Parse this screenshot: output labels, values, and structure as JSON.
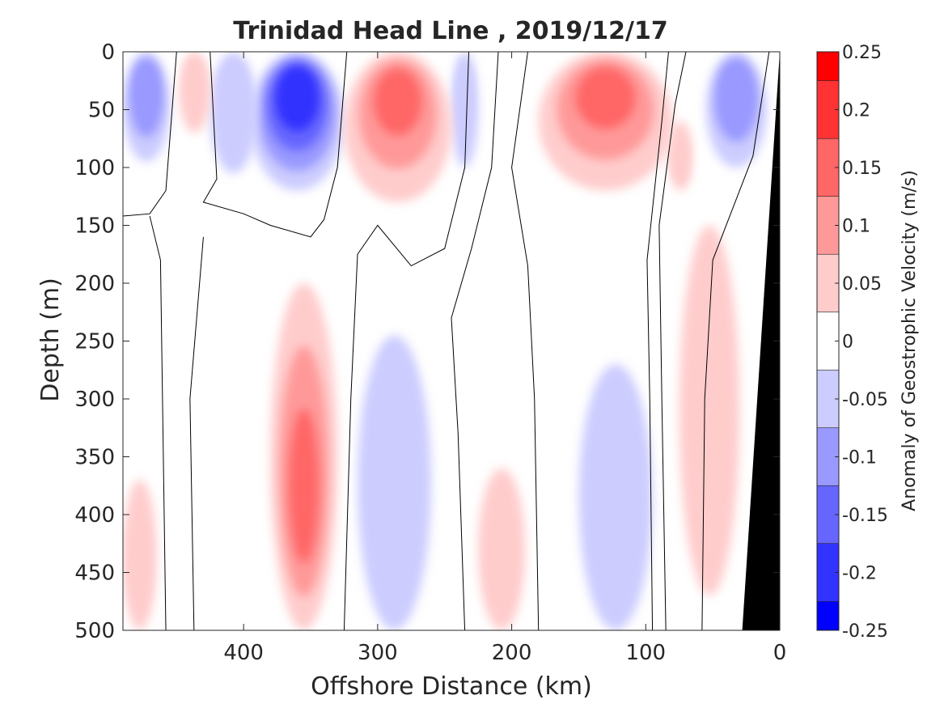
{
  "chart_data": {
    "type": "heatmap",
    "subtype": "filled-contour",
    "title": "Trinidad Head Line , 2019/12/17",
    "xlabel": "Offshore Distance (km)",
    "ylabel": "Depth (m)",
    "colorbar_label": "Anomaly of Geostrophic Velocity (m/s)",
    "x_reversed": true,
    "y_reversed": true,
    "xlim": [
      0,
      490
    ],
    "ylim": [
      0,
      500
    ],
    "x_ticks": [
      400,
      300,
      200,
      100,
      0
    ],
    "y_ticks": [
      0,
      50,
      100,
      150,
      200,
      250,
      300,
      350,
      400,
      450,
      500
    ],
    "colorbar_ticks": [
      "0.25",
      "0.2",
      "0.15",
      "0.1",
      "0.05",
      "0",
      "-0.05",
      "-0.1",
      "-0.15",
      "-0.2",
      "-0.25"
    ],
    "levels": [
      {
        "min": 0.225,
        "max": 0.25,
        "color": "#ff0000"
      },
      {
        "min": 0.175,
        "max": 0.225,
        "color": "#ff3333"
      },
      {
        "min": 0.125,
        "max": 0.175,
        "color": "#ff6666"
      },
      {
        "min": 0.075,
        "max": 0.125,
        "color": "#ff9999"
      },
      {
        "min": 0.025,
        "max": 0.075,
        "color": "#ffcccc"
      },
      {
        "min": -0.025,
        "max": 0.025,
        "color": "#ffffff"
      },
      {
        "min": -0.075,
        "max": -0.025,
        "color": "#ccccff"
      },
      {
        "min": -0.125,
        "max": -0.075,
        "color": "#9999ff"
      },
      {
        "min": -0.175,
        "max": -0.125,
        "color": "#6666ff"
      },
      {
        "min": -0.225,
        "max": -0.175,
        "color": "#3333ff"
      },
      {
        "min": -0.25,
        "max": -0.225,
        "color": "#0000ff"
      }
    ],
    "features": [
      {
        "label": "neg-360-surface",
        "value": -0.2,
        "dist_range": [
          325,
          395
        ],
        "depth_range": [
          0,
          120
        ]
      },
      {
        "label": "neg-470-surface",
        "value": -0.1,
        "dist_range": [
          455,
          490
        ],
        "depth_range": [
          0,
          95
        ]
      },
      {
        "label": "neg-410-surface",
        "value": -0.05,
        "dist_range": [
          390,
          425
        ],
        "depth_range": [
          0,
          105
        ]
      },
      {
        "label": "neg-240-surface",
        "value": -0.05,
        "dist_range": [
          225,
          245
        ],
        "depth_range": [
          0,
          100
        ]
      },
      {
        "label": "neg-30-surface",
        "value": -0.1,
        "dist_range": [
          10,
          55
        ],
        "depth_range": [
          0,
          100
        ]
      },
      {
        "label": "pos-300-surface",
        "value": 0.125,
        "dist_range": [
          245,
          325
        ],
        "depth_range": [
          0,
          130
        ]
      },
      {
        "label": "pos-120-surface",
        "value": 0.125,
        "dist_range": [
          80,
          180
        ],
        "depth_range": [
          0,
          120
        ]
      },
      {
        "label": "pos-440-surface",
        "value": 0.05,
        "dist_range": [
          425,
          448
        ],
        "depth_range": [
          0,
          70
        ]
      },
      {
        "label": "pos-75-subsurface",
        "value": 0.05,
        "dist_range": [
          65,
          83
        ],
        "depth_range": [
          60,
          120
        ]
      },
      {
        "label": "pos-355-deep",
        "value": 0.125,
        "dist_range": [
          330,
          380
        ],
        "depth_range": [
          200,
          500
        ]
      },
      {
        "label": "neg-290-deep",
        "value": -0.075,
        "dist_range": [
          260,
          315
        ],
        "depth_range": [
          245,
          500
        ]
      },
      {
        "label": "neg-120-deep",
        "value": -0.05,
        "dist_range": [
          95,
          150
        ],
        "depth_range": [
          270,
          500
        ]
      },
      {
        "label": "pos-205-deep",
        "value": 0.05,
        "dist_range": [
          190,
          225
        ],
        "depth_range": [
          360,
          500
        ]
      },
      {
        "label": "pos-470-deep",
        "value": 0.05,
        "dist_range": [
          465,
          490
        ],
        "depth_range": [
          370,
          500
        ]
      },
      {
        "label": "pos-40-slope",
        "value": 0.05,
        "dist_range": [
          30,
          75
        ],
        "depth_range": [
          150,
          470
        ]
      }
    ],
    "zero_contours_km": [
      [
        [
          450,
          0
        ],
        [
          458,
          120
        ],
        [
          470,
          140
        ],
        [
          490,
          142
        ]
      ],
      [
        [
          425,
          0
        ],
        [
          420,
          110
        ],
        [
          430,
          130
        ],
        [
          400,
          140
        ],
        [
          380,
          150
        ],
        [
          350,
          160
        ],
        [
          340,
          145
        ],
        [
          330,
          100
        ],
        [
          323,
          0
        ]
      ],
      [
        [
          470,
          142
        ],
        [
          462,
          180
        ],
        [
          458,
          500
        ]
      ],
      [
        [
          430,
          160
        ],
        [
          440,
          300
        ],
        [
          437,
          500
        ]
      ],
      [
        [
          325,
          500
        ],
        [
          320,
          300
        ],
        [
          315,
          175
        ],
        [
          300,
          150
        ],
        [
          275,
          185
        ],
        [
          250,
          170
        ],
        [
          235,
          100
        ],
        [
          232,
          0
        ]
      ],
      [
        [
          180,
          500
        ],
        [
          183,
          300
        ],
        [
          188,
          185
        ],
        [
          200,
          100
        ],
        [
          188,
          0
        ]
      ],
      [
        [
          235,
          500
        ],
        [
          240,
          330
        ],
        [
          245,
          230
        ],
        [
          230,
          170
        ],
        [
          215,
          100
        ],
        [
          210,
          0
        ]
      ],
      [
        [
          95,
          500
        ],
        [
          97,
          300
        ],
        [
          99,
          180
        ],
        [
          88,
          60
        ],
        [
          83,
          0
        ]
      ],
      [
        [
          58,
          500
        ],
        [
          56,
          300
        ],
        [
          50,
          180
        ],
        [
          20,
          90
        ],
        [
          8,
          0
        ]
      ],
      [
        [
          85,
          500
        ],
        [
          88,
          300
        ],
        [
          90,
          150
        ],
        [
          78,
          45
        ],
        [
          70,
          0
        ]
      ]
    ],
    "bathymetry": [
      [
        0,
        0
      ],
      [
        28,
        500
      ],
      [
        0,
        500
      ]
    ]
  }
}
